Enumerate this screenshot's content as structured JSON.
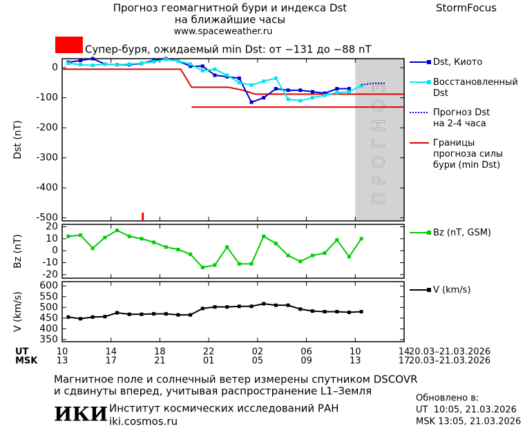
{
  "header": {
    "title": "Прогноз геомагнитной бури и индекса Dst",
    "subtitle": "на ближайшие часы",
    "url": "www.spaceweather.ru",
    "brand": "StormFocus"
  },
  "alert": {
    "color": "#ff0000",
    "text": "Супер-буря, ожидаемый min Dst: от −131 до −88 nT"
  },
  "time_axis": {
    "xlim": [
      0,
      28
    ],
    "ut_label": "UT",
    "ut_ticks": [
      {
        "value": 0,
        "label": "10"
      },
      {
        "value": 4,
        "label": "14"
      },
      {
        "value": 8,
        "label": "18"
      },
      {
        "value": 12,
        "label": "22"
      },
      {
        "value": 16,
        "label": "02"
      },
      {
        "value": 20,
        "label": "06"
      },
      {
        "value": 24,
        "label": "10"
      },
      {
        "value": 28,
        "label": "14"
      }
    ],
    "ut_dates": "20.03–21.03.2026",
    "msk_label": "MSK",
    "msk_ticks": [
      {
        "value": 0,
        "label": "13"
      },
      {
        "value": 4,
        "label": "17"
      },
      {
        "value": 8,
        "label": "21"
      },
      {
        "value": 12,
        "label": "01"
      },
      {
        "value": 16,
        "label": "05"
      },
      {
        "value": 20,
        "label": "09"
      },
      {
        "value": 24,
        "label": "13"
      },
      {
        "value": 28,
        "label": "17"
      }
    ],
    "msk_dates": "20.03–21.03.2026"
  },
  "chart_data": [
    {
      "type": "line",
      "ylabel": "Dst (nT)",
      "ylim": [
        -510,
        30
      ],
      "yticks": [
        0,
        -100,
        -200,
        -300,
        -400,
        -500
      ],
      "forecast_region": {
        "x": [
          24,
          28
        ],
        "label": "ПРОГНОЗ",
        "color": "#d3d3d3"
      },
      "event_marker": {
        "x": 6.6,
        "color": "#ff0000"
      },
      "series": [
        {
          "name": "Dst, Киото",
          "color": "#0000cc",
          "marker": "square",
          "x": [
            0.5,
            1.5,
            2.5,
            3.5,
            4.5,
            5.5,
            6.5,
            7.5,
            8.5,
            9.5,
            10.5,
            11.5,
            12.5,
            13.5,
            14.5,
            15.5,
            16.5,
            17.5,
            18.5,
            19.5,
            20.5,
            21.5,
            22.5,
            23.5
          ],
          "values": [
            18,
            24,
            30,
            12,
            10,
            10,
            14,
            24,
            30,
            22,
            5,
            5,
            -25,
            -30,
            -35,
            -115,
            -100,
            -70,
            -75,
            -75,
            -80,
            -85,
            -70,
            -70
          ]
        },
        {
          "name": "Восстановленный\nDst",
          "color": "#00e5ee",
          "marker": "square",
          "x": [
            0.5,
            1.5,
            2.5,
            3.5,
            4.5,
            5.5,
            6.5,
            7.5,
            8.5,
            9.5,
            10.5,
            11.5,
            12.5,
            13.5,
            14.5,
            15.5,
            16.5,
            17.5,
            18.5,
            19.5,
            20.5,
            21.5,
            22.5,
            23.5,
            24.5
          ],
          "values": [
            15,
            10,
            8,
            12,
            10,
            12,
            15,
            20,
            28,
            22,
            12,
            -10,
            -5,
            -25,
            -50,
            -58,
            -45,
            -35,
            -105,
            -110,
            -100,
            -92,
            -83,
            -80,
            -60
          ]
        },
        {
          "name": "Прогноз Dst\nна 2-4 часа",
          "color": "#0000cc",
          "style": "dotted",
          "x": [
            24.5,
            25.5,
            26.5
          ],
          "values": [
            -57,
            -52,
            -52
          ]
        }
      ],
      "storm_bounds": {
        "name": "Границы\nпрогноза силы\nбури (min Dst)",
        "color": "#e00000",
        "lines": [
          {
            "x": [
              0,
              9.7,
              10.6,
              13.6,
              14.8,
              15.8,
              28
            ],
            "values": [
              -5,
              -5,
              -65,
              -65,
              -75,
              -88,
              -88
            ]
          },
          {
            "x": [
              10.6,
              28
            ],
            "values": [
              -131,
              -131
            ]
          }
        ]
      }
    },
    {
      "type": "line",
      "ylabel": "Bz (nT)",
      "ylim": [
        -23,
        22
      ],
      "yticks": [
        20,
        10,
        0,
        -10,
        -20
      ],
      "series": [
        {
          "name": "Bz (nT, GSM)",
          "color": "#00cc00",
          "marker": "square",
          "x": [
            0.5,
            1.5,
            2.5,
            3.5,
            4.5,
            5.5,
            6.5,
            7.5,
            8.5,
            9.5,
            10.5,
            11.5,
            12.5,
            13.5,
            14.5,
            15.5,
            16.5,
            17.5,
            18.5,
            19.5,
            20.5,
            21.5,
            22.5,
            23.5,
            24.5
          ],
          "values": [
            12,
            13,
            2,
            11,
            17,
            12,
            10,
            7,
            3,
            1,
            -3,
            -14,
            -12,
            3,
            -11,
            -11,
            12,
            6,
            -4,
            -9,
            -4,
            -2,
            9,
            -5,
            10
          ]
        }
      ]
    },
    {
      "type": "line",
      "ylabel": "V (km/s)",
      "ylim": [
        340,
        620
      ],
      "yticks": [
        350,
        400,
        450,
        500,
        550,
        600
      ],
      "series": [
        {
          "name": "V (km/s)",
          "color": "#000000",
          "marker": "square",
          "x": [
            0.5,
            1.5,
            2.5,
            3.5,
            4.5,
            5.5,
            6.5,
            7.5,
            8.5,
            9.5,
            10.5,
            11.5,
            12.5,
            13.5,
            14.5,
            15.5,
            16.5,
            17.5,
            18.5,
            19.5,
            20.5,
            21.5,
            22.5,
            23.5,
            24.5
          ],
          "values": [
            455,
            447,
            455,
            457,
            475,
            468,
            468,
            470,
            470,
            465,
            465,
            495,
            502,
            502,
            505,
            505,
            517,
            510,
            510,
            492,
            483,
            480,
            480,
            477,
            480
          ]
        }
      ]
    }
  ],
  "footer": {
    "note": [
      "Магнитное поле и солнечный ветер измерены спутником DSCOVR",
      "и сдвинуты вперед, учитывая распространение L1–Земля"
    ],
    "logo": "ИКИ",
    "institute": "Институт космических исследований РАН",
    "institute_url": "iki.cosmos.ru",
    "updated_label": "Обновлено в:",
    "updated": [
      "UT  10:05, 21.03.2026",
      "MSK 13:05, 21.03.2026"
    ]
  }
}
